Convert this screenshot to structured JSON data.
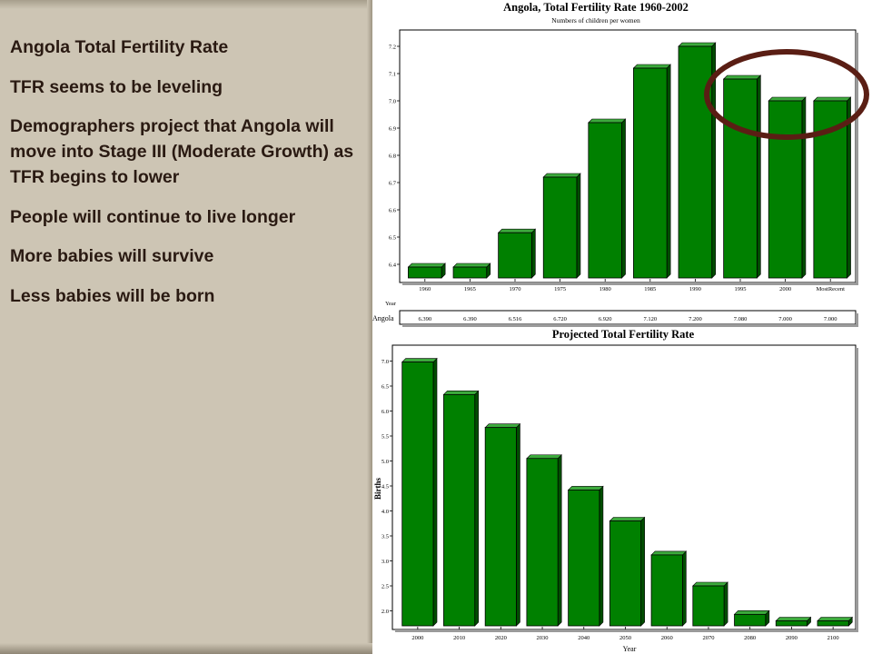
{
  "slide": {
    "bullets": [
      "Angola Total Fertility Rate",
      "TFR seems to be leveling",
      "Demographers project that Angola will move into Stage III (Moderate Growth) as TFR begins to lower",
      "People will continue to live longer",
      "More babies will survive",
      "Less babies will be born"
    ]
  },
  "colors": {
    "bar_fill": "#008000",
    "bar_top": "#3caa3c",
    "bar_side": "#004d00",
    "highlight_circle": "#5a1e14",
    "panel_bg": "#cdc5b4"
  },
  "chart_data": [
    {
      "type": "bar",
      "title": "Angola, Total Fertility Rate 1960-2002",
      "subtitle": "Numbers of children per women",
      "xlabel": "Year",
      "ylabel": "",
      "categories": [
        "1960",
        "1965",
        "1970",
        "1975",
        "1980",
        "1985",
        "1990",
        "1995",
        "2000",
        "MostRecent"
      ],
      "series": [
        {
          "name": "Angola",
          "values": [
            6.39,
            6.39,
            6.516,
            6.72,
            6.92,
            7.12,
            7.2,
            7.08,
            7.0,
            7.0
          ]
        }
      ],
      "table_values": [
        "6.390",
        "6.390",
        "6.516",
        "6.720",
        "6.920",
        "7.120",
        "7.200",
        "7.080",
        "7.000",
        "7.000"
      ],
      "yticks": [
        "6.4",
        "6.5",
        "6.6",
        "6.7",
        "6.8",
        "6.9",
        "7.0",
        "7.1",
        "7.2"
      ],
      "ylim": [
        6.35,
        7.23
      ],
      "grid": false,
      "annotation": "circle around 1995, 2000, MostRecent"
    },
    {
      "type": "bar",
      "title": "Projected Total Fertility Rate",
      "xlabel": "Year",
      "ylabel": "Births",
      "categories": [
        "2000",
        "2010",
        "2020",
        "2030",
        "2040",
        "2050",
        "2060",
        "2070",
        "2080",
        "2090",
        "2100"
      ],
      "series": [
        {
          "values": [
            6.98,
            6.33,
            5.67,
            5.05,
            4.42,
            3.8,
            3.12,
            2.5,
            1.93,
            1.8,
            1.8
          ]
        }
      ],
      "yticks": [
        "2.0",
        "2.5",
        "3.0",
        "3.5",
        "4.0",
        "4.5",
        "5.0",
        "5.5",
        "6.0",
        "6.5",
        "7.0"
      ],
      "ylim": [
        1.7,
        7.1
      ],
      "grid": false
    }
  ]
}
